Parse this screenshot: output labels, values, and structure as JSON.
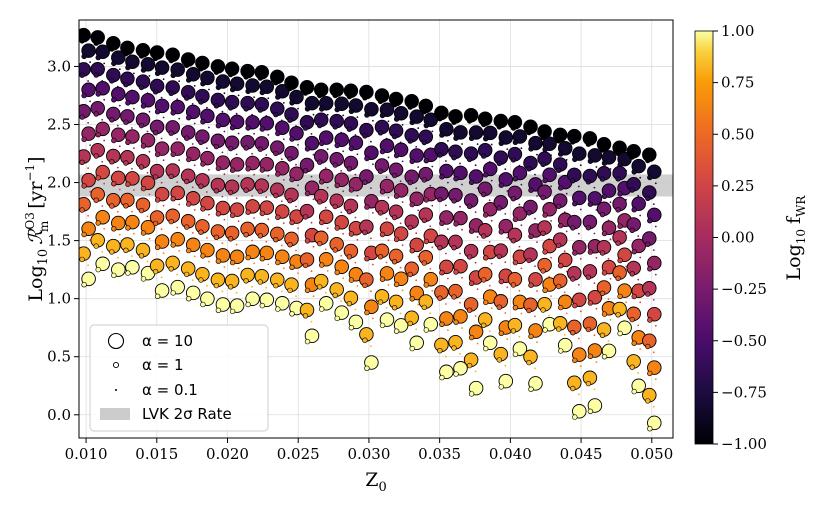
{
  "chart_data": {
    "type": "scatter",
    "xlabel": "Z",
    "xlabel_subscript": "0",
    "ylabel": {
      "prefix": "Log",
      "prefix_sub": "10",
      "symbol": "ℛ",
      "symbol_sup": "O3",
      "symbol_sub": "m",
      "unit": "[yr",
      "unit_sup": "−1",
      "unit_close": "]"
    },
    "xlim": [
      0.0095,
      0.0515
    ],
    "ylim": [
      -0.2,
      3.4
    ],
    "xticks": [
      0.01,
      0.015,
      0.02,
      0.025,
      0.03,
      0.035,
      0.04,
      0.045,
      0.05
    ],
    "xtick_labels": [
      "0.010",
      "0.015",
      "0.020",
      "0.025",
      "0.030",
      "0.035",
      "0.040",
      "0.045",
      "0.050"
    ],
    "yticks": [
      0.0,
      0.5,
      1.0,
      1.5,
      2.0,
      2.5,
      3.0
    ],
    "ytick_labels": [
      "0.0",
      "0.5",
      "1.0",
      "1.5",
      "2.0",
      "2.5",
      "3.0"
    ],
    "grid": true,
    "band": {
      "label": "LVK 2σ Rate",
      "ymin": 1.88,
      "ymax": 2.07,
      "color": "#c8c8c8"
    },
    "legend": {
      "placement": "lower-left",
      "entries": [
        {
          "label": "α = 10",
          "alpha": 10
        },
        {
          "label": "α = 1",
          "alpha": 1
        },
        {
          "label": "α = 0.1",
          "alpha": 0.1
        },
        {
          "label": "LVK 2σ Rate",
          "patch": true
        }
      ]
    },
    "colorbar": {
      "label": "Log",
      "label_sub": "10",
      "label_var": "f",
      "label_var_sub": "WR",
      "range": [
        -1.0,
        1.0
      ],
      "ticks": [
        -1.0,
        -0.75,
        -0.5,
        -0.25,
        0.0,
        0.25,
        0.5,
        0.75,
        1.0
      ],
      "tick_labels": [
        "−1.00",
        "−0.75",
        "−0.50",
        "−0.25",
        "0.00",
        "0.25",
        "0.50",
        "0.75",
        "1.00"
      ],
      "colormap": "inferno"
    },
    "z_columns": [
      0.01,
      0.011,
      0.0121,
      0.0131,
      0.0142,
      0.0152,
      0.0163,
      0.0174,
      0.0184,
      0.0195,
      0.0205,
      0.0216,
      0.0226,
      0.0237,
      0.0247,
      0.0258,
      0.0268,
      0.0279,
      0.0289,
      0.03,
      0.0311,
      0.0321,
      0.0332,
      0.0342,
      0.0353,
      0.0363,
      0.0374,
      0.0384,
      0.0395,
      0.0405,
      0.0416,
      0.0426,
      0.0437,
      0.0447,
      0.0458,
      0.0468,
      0.0479,
      0.0489,
      0.05
    ],
    "top_values": [
      3.27,
      3.25,
      3.2,
      3.16,
      3.14,
      3.12,
      3.1,
      3.06,
      3.03,
      3.0,
      2.98,
      2.96,
      2.95,
      2.91,
      2.86,
      2.82,
      2.8,
      2.8,
      2.79,
      2.78,
      2.75,
      2.72,
      2.7,
      2.66,
      2.6,
      2.57,
      2.58,
      2.55,
      2.53,
      2.52,
      2.48,
      2.44,
      2.41,
      2.4,
      2.38,
      2.33,
      2.3,
      2.27,
      2.24
    ],
    "bottom_values": [
      1.17,
      1.3,
      1.25,
      1.27,
      1.22,
      1.07,
      1.1,
      1.05,
      1.0,
      0.95,
      0.94,
      1.0,
      0.99,
      0.96,
      0.92,
      0.68,
      0.96,
      0.88,
      0.8,
      0.45,
      0.82,
      0.77,
      0.62,
      0.78,
      0.37,
      0.4,
      0.23,
      0.62,
      0.29,
      0.57,
      0.27,
      0.78,
      0.6,
      0.03,
      0.08,
      0.55,
      0.75,
      0.25,
      -0.07
    ],
    "series_by_alpha": [
      {
        "alpha": 10,
        "f_wr_range": [
          -1.0,
          1.0
        ]
      },
      {
        "alpha": 1,
        "f_wr_range": [
          -1.0,
          1.0
        ]
      },
      {
        "alpha": 0.1,
        "f_wr_range": [
          -1.0,
          1.0
        ]
      }
    ]
  }
}
